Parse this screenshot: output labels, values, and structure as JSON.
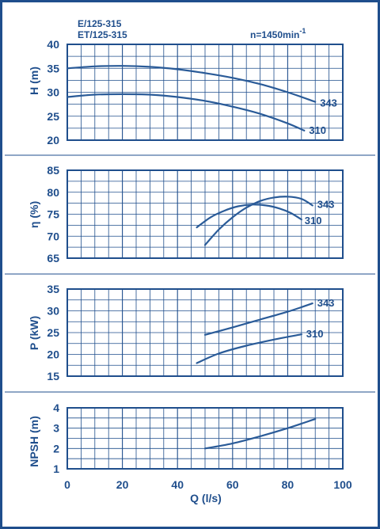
{
  "colors": {
    "primary": "#1f4e8c",
    "grid": "#1f4e8c",
    "background": "#ffffff",
    "curve": "#2a5b98"
  },
  "header": {
    "model_line_1": "E/125-315",
    "model_line_2": "ET/125-315",
    "speed": "n=1450min",
    "speed_sup": "-1"
  },
  "chart_data": [
    {
      "id": "head",
      "type": "line",
      "ylabel": "H (m)",
      "xlim": [
        0,
        100
      ],
      "ylim": [
        20,
        40
      ],
      "yticks": [
        20,
        25,
        30,
        35,
        40
      ],
      "grid": true,
      "series": [
        {
          "name": "343",
          "x": [
            0,
            10,
            20,
            30,
            40,
            50,
            60,
            70,
            80,
            90
          ],
          "y": [
            35.0,
            35.4,
            35.5,
            35.3,
            34.8,
            34.0,
            33.0,
            31.7,
            30.0,
            28.0
          ]
        },
        {
          "name": "310",
          "x": [
            0,
            10,
            20,
            30,
            40,
            50,
            60,
            70,
            80,
            86
          ],
          "y": [
            29.0,
            29.5,
            29.6,
            29.5,
            29.0,
            28.2,
            27.0,
            25.5,
            23.5,
            22.0
          ]
        }
      ]
    },
    {
      "id": "efficiency",
      "type": "line",
      "ylabel": "η (%)",
      "xlim": [
        0,
        100
      ],
      "ylim": [
        65,
        85
      ],
      "yticks": [
        65,
        70,
        75,
        80,
        85
      ],
      "grid": true,
      "series": [
        {
          "name": "343",
          "x": [
            50,
            55,
            60,
            65,
            70,
            75,
            80,
            85,
            89
          ],
          "y": [
            68.0,
            71.5,
            74.3,
            76.5,
            78.0,
            78.8,
            79.0,
            78.5,
            77.0
          ]
        },
        {
          "name": "310",
          "x": [
            47,
            52,
            57,
            62,
            67,
            72,
            77,
            81,
            85
          ],
          "y": [
            72.0,
            74.3,
            75.8,
            76.8,
            77.2,
            77.0,
            76.3,
            75.3,
            73.8
          ]
        }
      ]
    },
    {
      "id": "power",
      "type": "line",
      "ylabel": "P (kW)",
      "xlim": [
        0,
        100
      ],
      "ylim": [
        15,
        35
      ],
      "yticks": [
        15,
        20,
        25,
        30,
        35
      ],
      "grid": true,
      "series": [
        {
          "name": "343",
          "x": [
            50,
            60,
            70,
            80,
            89
          ],
          "y": [
            24.5,
            26.2,
            28.0,
            29.8,
            31.7
          ]
        },
        {
          "name": "310",
          "x": [
            47,
            55,
            65,
            75,
            85
          ],
          "y": [
            18.0,
            20.2,
            22.0,
            23.4,
            24.6
          ]
        }
      ]
    },
    {
      "id": "npsh",
      "type": "line",
      "ylabel": "NPSH (m)",
      "xlabel": "Q (l/s)",
      "xlim": [
        0,
        100
      ],
      "ylim": [
        1,
        4
      ],
      "yticks": [
        1,
        2,
        3,
        4
      ],
      "xticks": [
        0,
        20,
        40,
        60,
        80,
        100
      ],
      "grid": true,
      "series": [
        {
          "x": [
            50,
            60,
            70,
            80,
            90
          ],
          "y": [
            2.0,
            2.25,
            2.6,
            3.0,
            3.45
          ]
        }
      ]
    }
  ]
}
